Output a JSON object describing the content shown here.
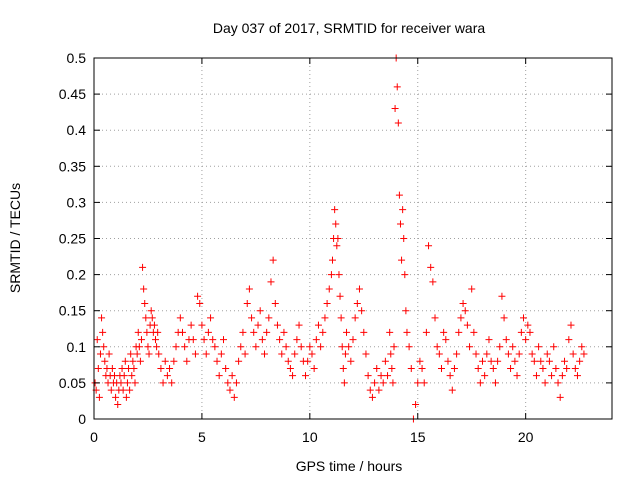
{
  "chart_data": {
    "type": "scatter",
    "title": "Day 037 of 2017, SRMTID for receiver wara",
    "xlabel": "GPS time / hours",
    "ylabel": "SRMTID / TECUs",
    "xlim": [
      0,
      24
    ],
    "ylim": [
      0,
      0.5
    ],
    "xticks": [
      0,
      5,
      10,
      15,
      20
    ],
    "xtick_labels": [
      "0",
      "5",
      "10",
      "15",
      "20"
    ],
    "yticks": [
      0,
      0.05,
      0.1,
      0.15,
      0.2,
      0.25,
      0.3,
      0.35,
      0.4,
      0.45,
      0.5
    ],
    "ytick_labels": [
      "0",
      "0.05",
      "0.1",
      "0.15",
      "0.2",
      "0.25",
      "0.3",
      "0.35",
      "0.4",
      "0.45",
      "0.5"
    ],
    "grid": true,
    "marker": "+",
    "color": "#ff0000",
    "series": [
      {
        "name": "SRMTID",
        "x": [
          0.05,
          0.1,
          0.15,
          0.2,
          0.25,
          0.3,
          0.35,
          0.4,
          0.45,
          0.5,
          0.55,
          0.6,
          0.65,
          0.7,
          0.75,
          0.8,
          0.85,
          0.9,
          0.95,
          1.0,
          1.05,
          1.1,
          1.15,
          1.2,
          1.25,
          1.3,
          1.35,
          1.4,
          1.45,
          1.5,
          1.55,
          1.6,
          1.65,
          1.7,
          1.75,
          1.8,
          1.85,
          1.9,
          1.95,
          2.0,
          2.05,
          2.1,
          2.15,
          2.2,
          2.25,
          2.3,
          2.35,
          2.4,
          2.45,
          2.5,
          2.55,
          2.6,
          2.65,
          2.7,
          2.75,
          2.8,
          2.85,
          2.9,
          2.95,
          3.0,
          3.1,
          3.2,
          3.3,
          3.4,
          3.5,
          3.6,
          3.7,
          3.8,
          3.9,
          4.0,
          4.1,
          4.2,
          4.3,
          4.4,
          4.5,
          4.6,
          4.7,
          4.8,
          4.9,
          5.0,
          5.1,
          5.2,
          5.3,
          5.4,
          5.5,
          5.6,
          5.7,
          5.8,
          5.9,
          6.0,
          6.1,
          6.2,
          6.3,
          6.4,
          6.5,
          6.6,
          6.7,
          6.8,
          6.9,
          7.0,
          7.1,
          7.2,
          7.3,
          7.4,
          7.5,
          7.6,
          7.7,
          7.8,
          7.9,
          8.0,
          8.1,
          8.2,
          8.3,
          8.4,
          8.5,
          8.6,
          8.7,
          8.8,
          8.9,
          9.0,
          9.1,
          9.2,
          9.3,
          9.4,
          9.5,
          9.6,
          9.7,
          9.8,
          9.9,
          10.0,
          10.1,
          10.2,
          10.3,
          10.4,
          10.5,
          10.6,
          10.7,
          10.8,
          10.9,
          11.0,
          11.05,
          11.1,
          11.15,
          11.2,
          11.25,
          11.3,
          11.35,
          11.4,
          11.45,
          11.5,
          11.55,
          11.6,
          11.65,
          11.7,
          11.8,
          11.9,
          12.0,
          12.1,
          12.2,
          12.3,
          12.4,
          12.5,
          12.6,
          12.7,
          12.8,
          12.9,
          13.0,
          13.1,
          13.2,
          13.3,
          13.4,
          13.5,
          13.6,
          13.7,
          13.75,
          13.8,
          13.85,
          13.9,
          13.95,
          14.0,
          14.05,
          14.1,
          14.15,
          14.2,
          14.25,
          14.3,
          14.35,
          14.4,
          14.45,
          14.5,
          14.6,
          14.7,
          14.8,
          14.9,
          15.0,
          15.1,
          15.2,
          15.3,
          15.4,
          15.5,
          15.6,
          15.7,
          15.8,
          15.9,
          16.0,
          16.1,
          16.2,
          16.3,
          16.4,
          16.5,
          16.6,
          16.7,
          16.8,
          16.9,
          17.0,
          17.1,
          17.2,
          17.3,
          17.4,
          17.5,
          17.6,
          17.7,
          17.8,
          17.9,
          18.0,
          18.1,
          18.2,
          18.3,
          18.4,
          18.5,
          18.6,
          18.7,
          18.8,
          18.9,
          19.0,
          19.1,
          19.2,
          19.3,
          19.4,
          19.5,
          19.6,
          19.7,
          19.8,
          19.9,
          20.0,
          20.1,
          20.2,
          20.3,
          20.4,
          20.5,
          20.6,
          20.7,
          20.8,
          20.9,
          21.0,
          21.1,
          21.2,
          21.3,
          21.4,
          21.5,
          21.6,
          21.7,
          21.8,
          21.9,
          22.0,
          22.1,
          22.2,
          22.3,
          22.4,
          22.5,
          22.6,
          22.7
        ],
        "y": [
          0.05,
          0.04,
          0.11,
          0.07,
          0.03,
          0.09,
          0.14,
          0.12,
          0.1,
          0.08,
          0.06,
          0.07,
          0.05,
          0.09,
          0.06,
          0.04,
          0.07,
          0.05,
          0.06,
          0.03,
          0.05,
          0.02,
          0.04,
          0.06,
          0.05,
          0.07,
          0.04,
          0.06,
          0.08,
          0.03,
          0.05,
          0.07,
          0.04,
          0.09,
          0.06,
          0.08,
          0.07,
          0.05,
          0.1,
          0.09,
          0.12,
          0.1,
          0.08,
          0.11,
          0.21,
          0.18,
          0.16,
          0.14,
          0.12,
          0.1,
          0.09,
          0.13,
          0.15,
          0.14,
          0.12,
          0.13,
          0.11,
          0.1,
          0.12,
          0.09,
          0.07,
          0.05,
          0.08,
          0.06,
          0.07,
          0.05,
          0.08,
          0.1,
          0.12,
          0.14,
          0.12,
          0.1,
          0.08,
          0.11,
          0.13,
          0.11,
          0.09,
          0.17,
          0.16,
          0.13,
          0.11,
          0.09,
          0.12,
          0.14,
          0.11,
          0.1,
          0.08,
          0.06,
          0.09,
          0.11,
          0.07,
          0.05,
          0.04,
          0.06,
          0.03,
          0.05,
          0.08,
          0.1,
          0.12,
          0.09,
          0.16,
          0.18,
          0.14,
          0.12,
          0.1,
          0.13,
          0.15,
          0.11,
          0.09,
          0.12,
          0.14,
          0.19,
          0.22,
          0.16,
          0.13,
          0.11,
          0.09,
          0.12,
          0.1,
          0.08,
          0.07,
          0.06,
          0.09,
          0.11,
          0.13,
          0.1,
          0.08,
          0.06,
          0.08,
          0.1,
          0.09,
          0.07,
          0.11,
          0.13,
          0.1,
          0.12,
          0.14,
          0.16,
          0.18,
          0.2,
          0.22,
          0.25,
          0.29,
          0.27,
          0.24,
          0.25,
          0.2,
          0.17,
          0.14,
          0.1,
          0.07,
          0.05,
          0.09,
          0.12,
          0.1,
          0.08,
          0.11,
          0.14,
          0.16,
          0.18,
          0.15,
          0.12,
          0.09,
          0.06,
          0.04,
          0.03,
          0.05,
          0.07,
          0.04,
          0.06,
          0.05,
          0.08,
          0.06,
          0.12,
          0.09,
          0.07,
          0.05,
          0.1,
          0.43,
          0.5,
          0.46,
          0.41,
          0.31,
          0.27,
          0.22,
          0.29,
          0.25,
          0.2,
          0.15,
          0.12,
          0.1,
          0.07,
          0.0,
          0.02,
          0.05,
          0.08,
          0.07,
          0.05,
          0.12,
          0.24,
          0.21,
          0.19,
          0.14,
          0.1,
          0.09,
          0.07,
          0.12,
          0.11,
          0.08,
          0.06,
          0.04,
          0.07,
          0.09,
          0.12,
          0.14,
          0.16,
          0.15,
          0.13,
          0.1,
          0.18,
          0.12,
          0.09,
          0.07,
          0.05,
          0.08,
          0.06,
          0.09,
          0.11,
          0.08,
          0.07,
          0.05,
          0.08,
          0.1,
          0.17,
          0.14,
          0.11,
          0.09,
          0.07,
          0.1,
          0.08,
          0.06,
          0.09,
          0.12,
          0.14,
          0.11,
          0.13,
          0.12,
          0.09,
          0.08,
          0.06,
          0.1,
          0.08,
          0.07,
          0.05,
          0.09,
          0.08,
          0.06,
          0.1,
          0.07,
          0.05,
          0.03,
          0.06,
          0.08,
          0.07,
          0.11,
          0.13,
          0.09,
          0.07,
          0.06,
          0.08,
          0.1,
          0.09
        ]
      }
    ]
  }
}
